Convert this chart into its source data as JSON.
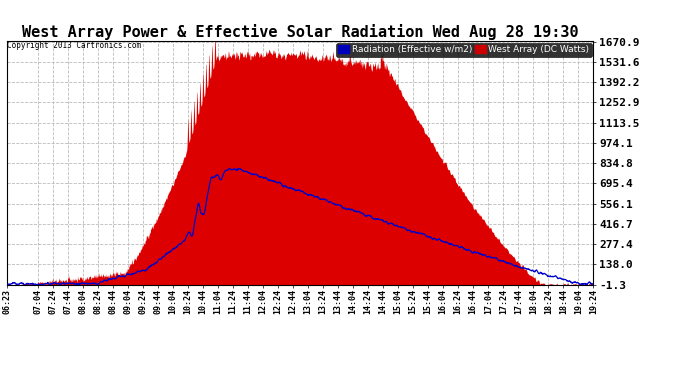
{
  "title": "West Array Power & Effective Solar Radiation Wed Aug 28 19:30",
  "copyright": "Copyright 2013 Cartronics.com",
  "legend_radiation": "Radiation (Effective w/m2)",
  "legend_west": "West Array (DC Watts)",
  "legend_radiation_bg": "#0000bb",
  "legend_west_bg": "#cc0000",
  "yticks": [
    -1.3,
    138.0,
    277.4,
    416.7,
    556.1,
    695.4,
    834.8,
    974.1,
    1113.5,
    1252.9,
    1392.2,
    1531.6,
    1670.9
  ],
  "ymin": -1.3,
  "ymax": 1670.9,
  "background_color": "#ffffff",
  "plot_bg_color": "#ffffff",
  "grid_color": "#bbbbbb",
  "red_fill_color": "#dd0000",
  "blue_line_color": "#0000cc",
  "title_fontsize": 11,
  "xtick_fontsize": 6.0,
  "ytick_fontsize": 8.0,
  "xtick_labels": [
    "06:23",
    "07:04",
    "07:24",
    "07:44",
    "08:04",
    "08:24",
    "08:44",
    "09:04",
    "09:24",
    "09:44",
    "10:04",
    "10:24",
    "10:44",
    "11:04",
    "11:24",
    "11:44",
    "12:04",
    "12:24",
    "12:44",
    "13:04",
    "13:24",
    "13:44",
    "14:04",
    "14:24",
    "14:44",
    "15:04",
    "15:24",
    "15:44",
    "16:04",
    "16:24",
    "16:44",
    "17:04",
    "17:24",
    "17:44",
    "18:04",
    "18:24",
    "18:44",
    "19:04",
    "19:24"
  ]
}
